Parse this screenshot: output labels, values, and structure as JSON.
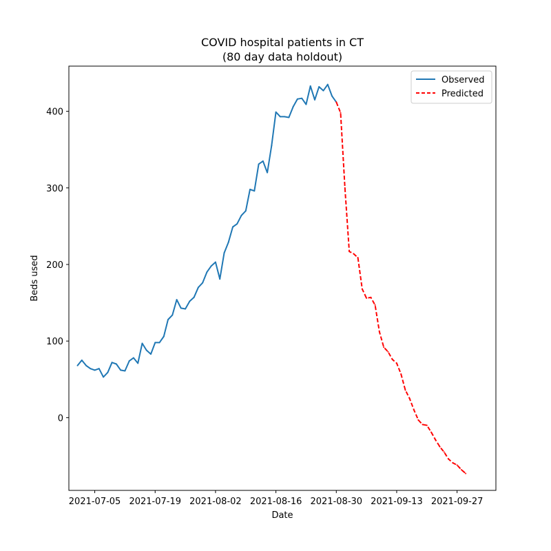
{
  "chart_data": {
    "type": "line",
    "title_line1": "COVID hospital patients in CT",
    "title_line2": "(80 day data holdout)",
    "xlabel": "Date",
    "ylabel": "Beds used",
    "ylim": [
      -95,
      459
    ],
    "xlim": [
      "2021-06-29",
      "2021-10-06"
    ],
    "x_ticks": [
      "2021-07-05",
      "2021-07-19",
      "2021-08-02",
      "2021-08-16",
      "2021-08-30",
      "2021-09-13",
      "2021-09-27"
    ],
    "y_ticks": [
      0,
      100,
      200,
      300,
      400
    ],
    "grid": false,
    "legend_position": "upper right",
    "series": [
      {
        "name": "Observed",
        "color": "#1f77b4",
        "style": "solid",
        "dates": [
          "2021-07-01",
          "2021-07-02",
          "2021-07-03",
          "2021-07-04",
          "2021-07-05",
          "2021-07-06",
          "2021-07-07",
          "2021-07-08",
          "2021-07-09",
          "2021-07-10",
          "2021-07-11",
          "2021-07-12",
          "2021-07-13",
          "2021-07-14",
          "2021-07-15",
          "2021-07-16",
          "2021-07-17",
          "2021-07-18",
          "2021-07-19",
          "2021-07-20",
          "2021-07-21",
          "2021-07-22",
          "2021-07-23",
          "2021-07-24",
          "2021-07-25",
          "2021-07-26",
          "2021-07-27",
          "2021-07-28",
          "2021-07-29",
          "2021-07-30",
          "2021-07-31",
          "2021-08-01",
          "2021-08-02",
          "2021-08-03",
          "2021-08-04",
          "2021-08-05",
          "2021-08-06",
          "2021-08-07",
          "2021-08-08",
          "2021-08-09",
          "2021-08-10",
          "2021-08-11",
          "2021-08-12",
          "2021-08-13",
          "2021-08-14",
          "2021-08-15",
          "2021-08-16",
          "2021-08-17",
          "2021-08-18",
          "2021-08-19",
          "2021-08-20",
          "2021-08-21",
          "2021-08-22",
          "2021-08-23",
          "2021-08-24",
          "2021-08-25",
          "2021-08-26",
          "2021-08-27",
          "2021-08-28",
          "2021-08-29",
          "2021-08-30"
        ],
        "values": [
          68,
          75,
          68,
          64,
          62,
          64,
          53,
          59,
          72,
          70,
          62,
          61,
          74,
          78,
          71,
          97,
          88,
          83,
          98,
          98,
          106,
          128,
          134,
          154,
          143,
          142,
          152,
          157,
          170,
          176,
          190,
          198,
          203,
          181,
          215,
          229,
          249,
          253,
          264,
          270,
          298,
          296,
          331,
          335,
          320,
          355,
          399,
          393,
          393,
          392,
          406,
          416,
          417,
          409,
          433,
          415,
          432,
          427,
          435,
          420,
          412
        ]
      },
      {
        "name": "Predicted",
        "color": "#ff0000",
        "style": "dashed",
        "dates": [
          "2021-08-30",
          "2021-08-31",
          "2021-09-01",
          "2021-09-02",
          "2021-09-03",
          "2021-09-04",
          "2021-09-05",
          "2021-09-06",
          "2021-09-07",
          "2021-09-08",
          "2021-09-09",
          "2021-09-10",
          "2021-09-11",
          "2021-09-12",
          "2021-09-13",
          "2021-09-14",
          "2021-09-15",
          "2021-09-16",
          "2021-09-17",
          "2021-09-18",
          "2021-09-19",
          "2021-09-20",
          "2021-09-21",
          "2021-09-22",
          "2021-09-23",
          "2021-09-24",
          "2021-09-25",
          "2021-09-26",
          "2021-09-27",
          "2021-09-28",
          "2021-09-29"
        ],
        "values": [
          412,
          398,
          300,
          217,
          214,
          209,
          168,
          156,
          157,
          147,
          112,
          92,
          86,
          76,
          71,
          57,
          36,
          25,
          10,
          -3,
          -9,
          -10,
          -19,
          -29,
          -38,
          -45,
          -54,
          -59,
          -62,
          -68,
          -73
        ]
      }
    ]
  }
}
